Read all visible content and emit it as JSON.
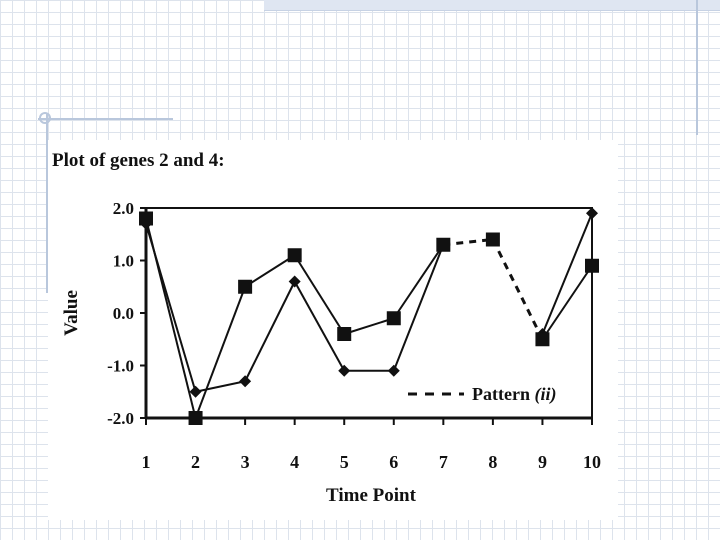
{
  "chart_data": {
    "type": "line",
    "title": "Plot of genes 2 and 4:",
    "xlabel": "Time Point",
    "ylabel": "Value",
    "x": [
      1,
      2,
      3,
      4,
      5,
      6,
      7,
      8,
      9,
      10
    ],
    "x_tick_labels": [
      "1",
      "2",
      "3",
      "4",
      "5",
      "6",
      "7",
      "8",
      "9",
      "10"
    ],
    "y_tick_labels": [
      "2.0",
      "1.0",
      "0.0",
      "-1.0",
      "-2.0"
    ],
    "y_ticks": [
      2,
      1,
      0,
      -1,
      -2
    ],
    "ylim": [
      -2,
      2
    ],
    "xlim": [
      1,
      10
    ],
    "grid": false,
    "legend_position": "bottom-right",
    "series": [
      {
        "name": "",
        "marker": "square",
        "values": [
          1.8,
          -2.0,
          0.5,
          1.1,
          -0.4,
          -0.1,
          1.3,
          1.4,
          -0.5,
          0.9
        ],
        "segments": [
          "solid",
          "solid",
          "solid",
          "solid",
          "solid",
          "solid",
          "dashed",
          "dashed",
          "solid"
        ]
      },
      {
        "name": "",
        "marker": "diamond",
        "values": [
          1.7,
          -1.5,
          -1.3,
          0.6,
          -1.1,
          -1.1,
          1.3,
          null,
          -0.4,
          1.9
        ],
        "segments": [
          "solid",
          "solid",
          "solid",
          "solid",
          "solid",
          "solid",
          null,
          null,
          "solid"
        ]
      }
    ],
    "legend": [
      {
        "label": "Pattern (ii)",
        "style": "dashed"
      }
    ]
  }
}
